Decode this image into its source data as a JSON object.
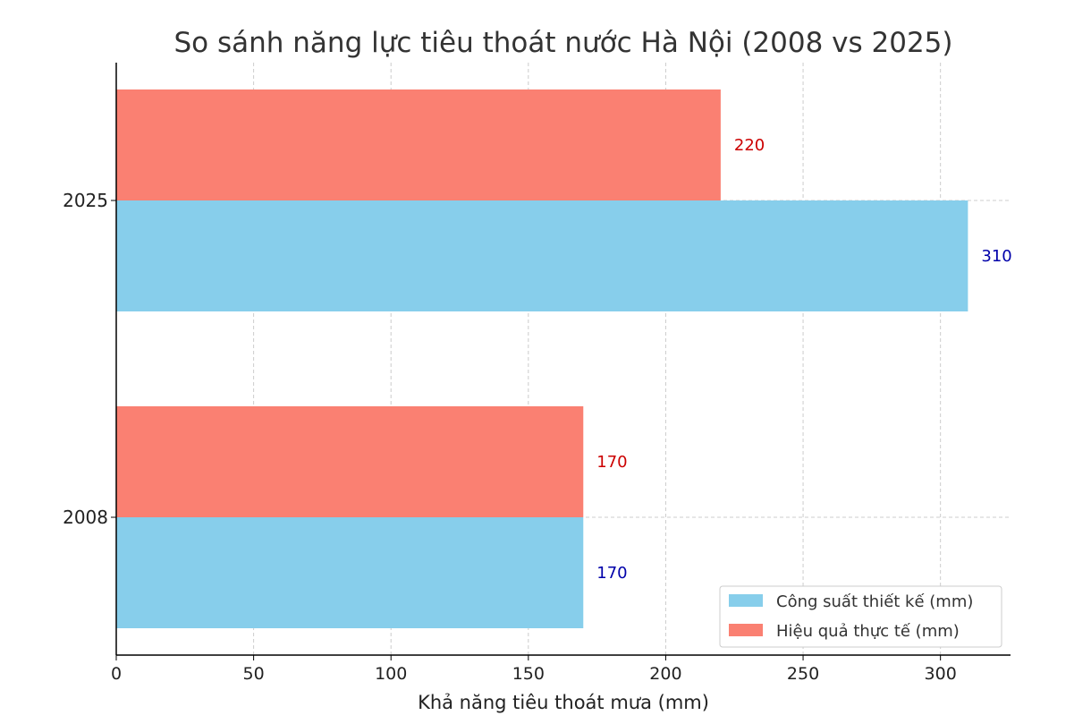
{
  "chart_data": {
    "type": "bar",
    "orientation": "horizontal",
    "title": "So sánh năng lực tiêu thoát nước Hà Nội (2008 vs 2025)",
    "xlabel": "Khả năng tiêu thoát mưa (mm)",
    "ylabel": "",
    "categories": [
      "2008",
      "2025"
    ],
    "series": [
      {
        "name": "Công suất thiết kế (mm)",
        "values": [
          170,
          310
        ],
        "color": "#87CEEB",
        "label_color": "#0000AA"
      },
      {
        "name": "Hiệu quả thực tế (mm)",
        "values": [
          170,
          220
        ],
        "color": "#FA8072",
        "label_color": "#CC0000"
      }
    ],
    "xticks": [
      "0",
      "50",
      "100",
      "150",
      "200",
      "250",
      "300"
    ],
    "xlim": [
      0,
      325.5
    ],
    "grid": true,
    "legend_position": "bottom-right"
  }
}
